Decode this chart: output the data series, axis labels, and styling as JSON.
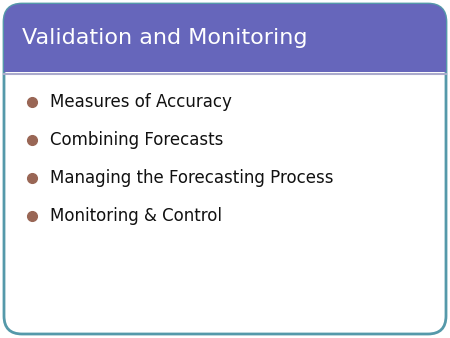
{
  "title": "Validation and Monitoring",
  "title_color": "#ffffff",
  "title_bg_color": "#6666bb",
  "title_fontsize": 16,
  "bullet_items": [
    "Measures of Accuracy",
    "Combining Forecasts",
    "Managing the Forecasting Process",
    "Monitoring & Control"
  ],
  "bullet_color": "#996655",
  "bullet_text_color": "#111111",
  "bullet_fontsize": 12,
  "body_bg_color": "#ffffff",
  "border_color": "#5599aa",
  "slide_bg_color": "#ffffff",
  "separator_color": "#aaaacc",
  "title_weight": "normal"
}
